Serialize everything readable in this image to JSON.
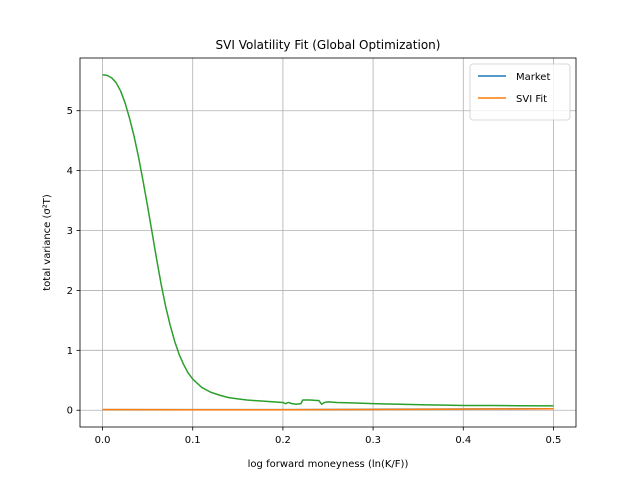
{
  "chart_data": {
    "type": "line",
    "title": "SVI Volatility Fit (Global Optimization)",
    "xlabel": "log forward moneyness (ln(K/F))",
    "ylabel": "total variance (σ²T)",
    "xlim": [
      -0.025,
      0.525
    ],
    "ylim": [
      -0.28,
      5.88
    ],
    "x_ticks": [
      0.0,
      0.1,
      0.2,
      0.3,
      0.4,
      0.5
    ],
    "x_tick_labels": [
      "0.0",
      "0.1",
      "0.2",
      "0.3",
      "0.4",
      "0.5"
    ],
    "y_ticks": [
      0,
      1,
      2,
      3,
      4,
      5
    ],
    "y_tick_labels": [
      "0",
      "1",
      "2",
      "3",
      "4",
      "5"
    ],
    "grid": true,
    "legend_position": "top-right",
    "series": [
      {
        "name": "Market",
        "color": "#1f77b4",
        "x": [
          0.0,
          0.1,
          0.2,
          0.3,
          0.4,
          0.5
        ],
        "y": [
          0.01,
          0.01,
          0.01,
          0.015,
          0.02,
          0.025
        ]
      },
      {
        "name": "SVI Fit",
        "color": "#ff7f0e",
        "x": [
          0.0,
          0.1,
          0.2,
          0.3,
          0.4,
          0.5
        ],
        "y": [
          0.01,
          0.008,
          0.009,
          0.012,
          0.018,
          0.025
        ]
      },
      {
        "color": "#2ca02c",
        "x": [
          0.0,
          0.005,
          0.01,
          0.015,
          0.02,
          0.025,
          0.03,
          0.035,
          0.04,
          0.045,
          0.05,
          0.055,
          0.06,
          0.065,
          0.07,
          0.075,
          0.08,
          0.085,
          0.09,
          0.095,
          0.1,
          0.11,
          0.12,
          0.13,
          0.14,
          0.15,
          0.16,
          0.17,
          0.18,
          0.19,
          0.2,
          0.203,
          0.206,
          0.21,
          0.215,
          0.22,
          0.222,
          0.23,
          0.24,
          0.243,
          0.246,
          0.25,
          0.26,
          0.28,
          0.3,
          0.33,
          0.36,
          0.38,
          0.4,
          0.43,
          0.46,
          0.5
        ],
        "y": [
          5.6,
          5.59,
          5.55,
          5.47,
          5.33,
          5.13,
          4.87,
          4.57,
          4.22,
          3.82,
          3.4,
          2.96,
          2.52,
          2.1,
          1.73,
          1.42,
          1.15,
          0.93,
          0.76,
          0.62,
          0.52,
          0.38,
          0.3,
          0.25,
          0.21,
          0.19,
          0.17,
          0.16,
          0.15,
          0.14,
          0.13,
          0.11,
          0.13,
          0.11,
          0.1,
          0.11,
          0.17,
          0.17,
          0.16,
          0.1,
          0.13,
          0.14,
          0.13,
          0.12,
          0.11,
          0.1,
          0.09,
          0.085,
          0.08,
          0.078,
          0.075,
          0.072
        ]
      }
    ]
  }
}
